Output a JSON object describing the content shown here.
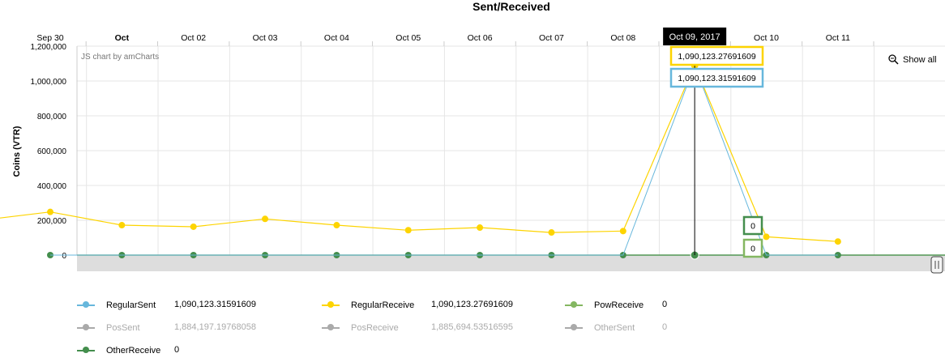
{
  "chart_data": {
    "type": "line",
    "title": "Sent/Received",
    "ylabel": "Coins (VTR)",
    "xlabel": "",
    "credit": "JS chart by amCharts",
    "zoom_label": "Show all",
    "ylim": [
      0,
      1200000
    ],
    "yticks": [
      "1,200,000",
      "1,000,000",
      "800,000",
      "600,000",
      "400,000",
      "200,000",
      "0"
    ],
    "x": [
      "Sep 30",
      "Oct",
      "Oct 02",
      "Oct 03",
      "Oct 04",
      "Oct 05",
      "Oct 06",
      "Oct 07",
      "Oct 08",
      "Oct 09",
      "Oct 10",
      "Oct 11"
    ],
    "bold_ticks": [
      "Oct"
    ],
    "cursor": {
      "label": "Oct 09, 2017",
      "index": 9
    },
    "series": [
      {
        "name": "RegularSent",
        "color": "#67b7dc",
        "values": [
          0,
          0,
          0,
          0,
          0,
          0,
          0,
          0,
          0,
          1090123.31591609,
          0,
          0
        ]
      },
      {
        "name": "RegularReceive",
        "color": "#fdd400",
        "values": [
          248000,
          172000,
          163000,
          208000,
          172000,
          143000,
          158000,
          130000,
          138000,
          1090123.27691609,
          105000,
          78000
        ]
      },
      {
        "name": "PowReceive",
        "color": "#84b761",
        "values": [
          0,
          0,
          0,
          0,
          0,
          0,
          0,
          0,
          0,
          0,
          0,
          0
        ]
      },
      {
        "name": "OtherReceive",
        "color": "#448e4d",
        "values": [
          0,
          0,
          0,
          0,
          0,
          0,
          0,
          0,
          0,
          0,
          0,
          0
        ]
      }
    ],
    "balloons": [
      {
        "text": "1,090,123.27691609",
        "color": "#fdd400"
      },
      {
        "text": "1,090,123.31591609",
        "color": "#67b7dc"
      },
      {
        "text": "0",
        "color": "#448e4d"
      },
      {
        "text": "0",
        "color": "#84b761"
      }
    ],
    "legend": [
      {
        "name": "RegularSent",
        "value": "1,090,123.31591609",
        "color": "#67b7dc",
        "enabled": true
      },
      {
        "name": "RegularReceive",
        "value": "1,090,123.27691609",
        "color": "#fdd400",
        "enabled": true
      },
      {
        "name": "PowReceive",
        "value": "0",
        "color": "#84b761",
        "enabled": true
      },
      {
        "name": "PosSent",
        "value": "1,884,197.19768058",
        "color": "#aaaaaa",
        "enabled": false
      },
      {
        "name": "PosReceive",
        "value": "1,885,694.53516595",
        "color": "#aaaaaa",
        "enabled": false
      },
      {
        "name": "OtherSent",
        "value": "0",
        "color": "#aaaaaa",
        "enabled": false
      },
      {
        "name": "OtherReceive",
        "value": "0",
        "color": "#448e4d",
        "enabled": true
      }
    ]
  }
}
